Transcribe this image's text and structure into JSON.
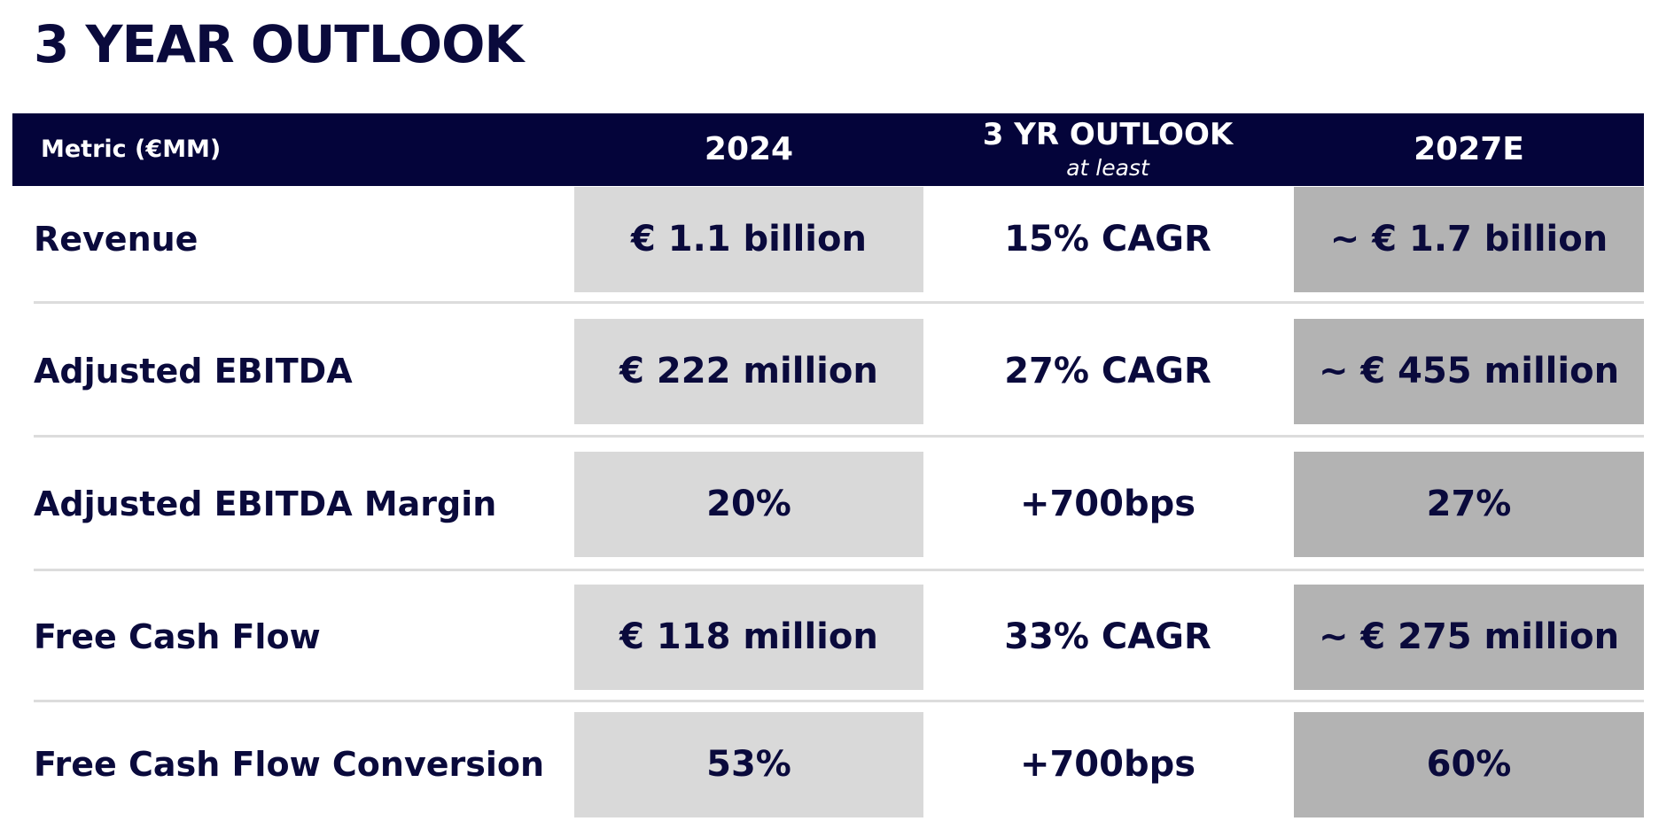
{
  "title": "3 YEAR OUTLOOK",
  "header": {
    "metric": "Metric (€MM)",
    "col_2024": "2024",
    "col_outlook": "3 YR OUTLOOK",
    "col_outlook_sub": "at least",
    "col_2027": "2027E"
  },
  "rows": [
    {
      "label": "Revenue",
      "v2024": "€ 1.1 billion",
      "outlook": "15% CAGR",
      "v2027": "~ € 1.7 billion"
    },
    {
      "label": "Adjusted EBITDA",
      "v2024": "€ 222 million",
      "outlook": "27% CAGR",
      "v2027": "~ € 455 million"
    },
    {
      "label": "Adjusted EBITDA Margin",
      "v2024": "20%",
      "outlook": "+700bps",
      "v2027": "27%"
    },
    {
      "label": "Free Cash Flow",
      "v2024": "€ 118 million",
      "outlook": "33% CAGR",
      "v2027": "~ € 275 million"
    },
    {
      "label": "Free Cash Flow Conversion",
      "v2024": "53%",
      "outlook": "+700bps",
      "v2027": "60%"
    }
  ],
  "colors": {
    "header_bg": "#04043a",
    "text": "#0a0a3c",
    "box_2024": "#d9d9d9",
    "box_2027": "#b3b3b3"
  }
}
